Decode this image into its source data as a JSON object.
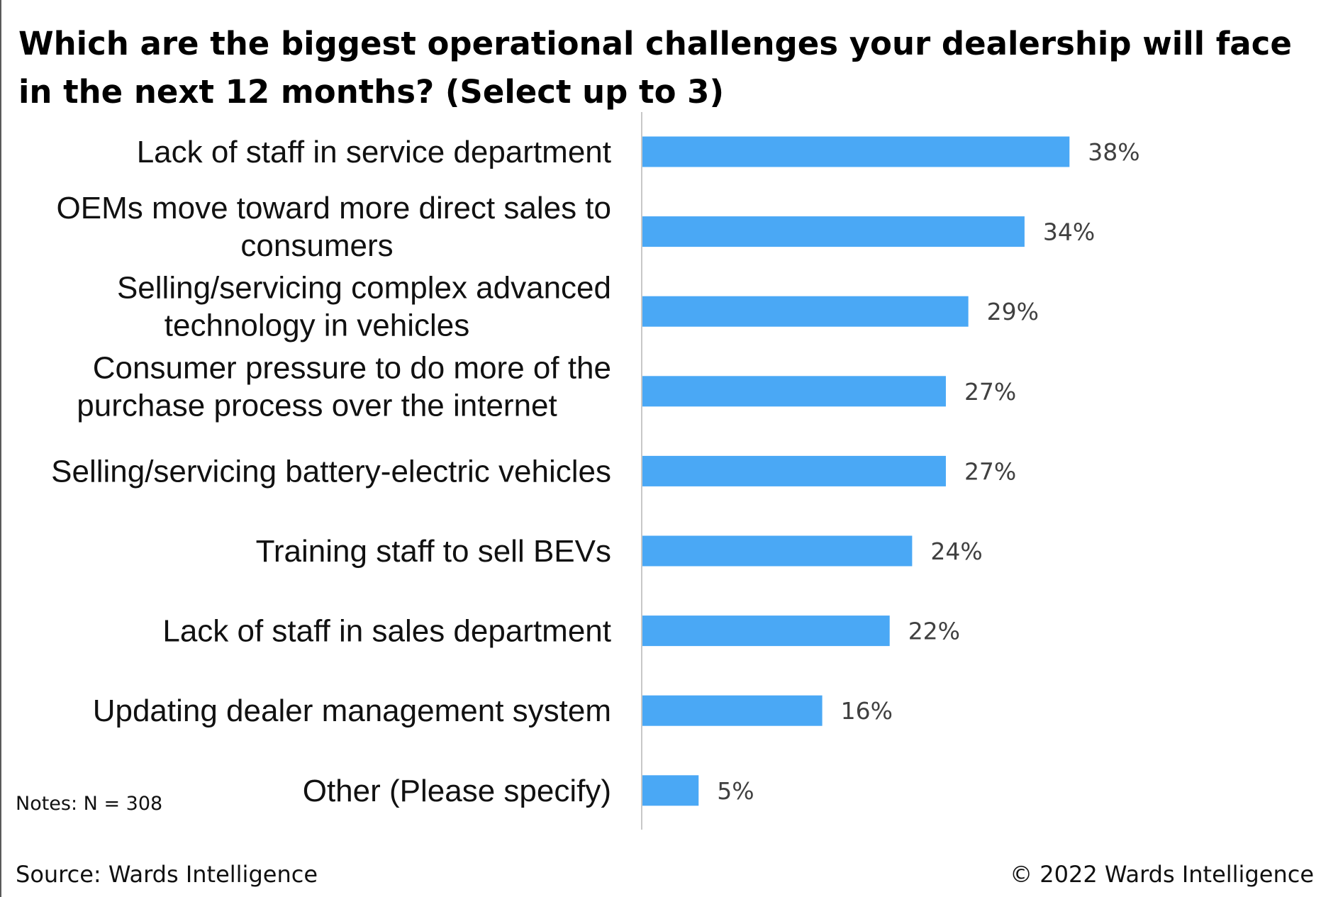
{
  "chart_data": {
    "type": "bar",
    "orientation": "horizontal",
    "title": "Which are the biggest operational challenges your dealership will face in the next 12 months? (Select up to 3)",
    "categories": [
      [
        "Lack of staff in service department"
      ],
      [
        "OEMs move toward more direct sales to",
        "consumers"
      ],
      [
        "Selling/servicing complex advanced",
        "technology in vehicles"
      ],
      [
        "Consumer pressure to do more of the",
        "purchase process over the internet"
      ],
      [
        "Selling/servicing battery-electric vehicles"
      ],
      [
        "Training staff to sell BEVs"
      ],
      [
        "Lack of staff in sales department"
      ],
      [
        "Updating dealer management system"
      ],
      [
        "Other (Please specify)"
      ]
    ],
    "values": [
      38,
      34,
      29,
      27,
      27,
      24,
      22,
      16,
      5
    ],
    "value_labels": [
      "38%",
      "34%",
      "29%",
      "27%",
      "27%",
      "24%",
      "22%",
      "16%",
      "5%"
    ],
    "xlim": [
      0,
      100
    ],
    "grid": false,
    "bar_color": "#4aa8f5"
  },
  "notes": "Notes: N = 308",
  "source": "Source: Wards Intelligence",
  "copyright": "© 2022 Wards Intelligence"
}
